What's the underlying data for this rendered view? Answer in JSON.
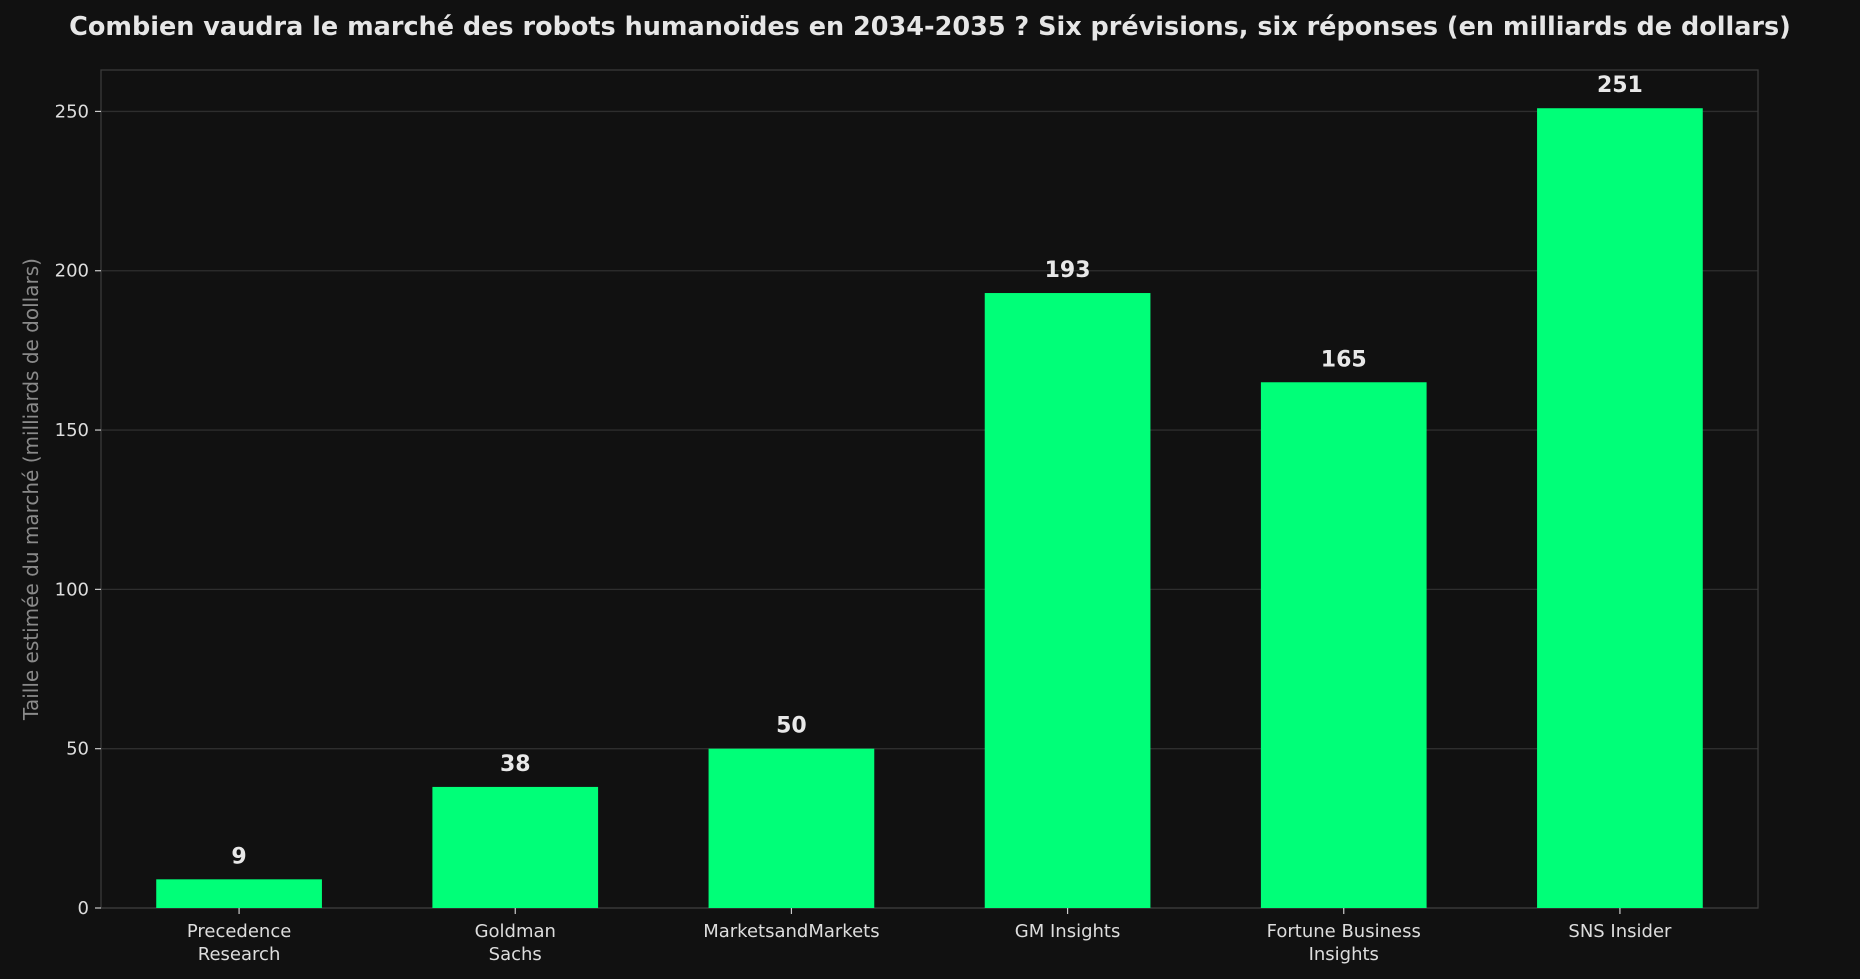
{
  "colors": {
    "background": "#111111",
    "bar": "#00FF78",
    "grid": "#2e2e2e",
    "axis": "#3a3a3a",
    "text": "#e6e6e6"
  },
  "chart_data": {
    "type": "bar",
    "title": "Combien vaudra le marché des robots humanoïdes en 2034-2035 ? Six prévisions, six réponses (en milliards de dollars)",
    "xlabel": "",
    "ylabel": "Taille estimée du marché (milliards de dollars)",
    "categories": [
      [
        "Precedence",
        "Research"
      ],
      [
        "Goldman",
        "Sachs"
      ],
      [
        "MarketsandMarkets"
      ],
      [
        "GM Insights"
      ],
      [
        "Fortune Business",
        "Insights"
      ],
      [
        "SNS Insider"
      ]
    ],
    "values": [
      9,
      38,
      50,
      193,
      165,
      251
    ],
    "value_labels": [
      "9",
      "38",
      "50",
      "193",
      "165",
      "251"
    ],
    "yticks": [
      0,
      50,
      100,
      150,
      200,
      250
    ],
    "ylim": [
      0,
      263
    ],
    "grid": true,
    "legend": "none"
  }
}
